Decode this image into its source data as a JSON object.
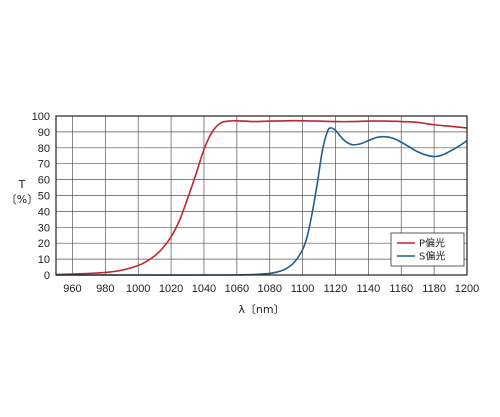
{
  "chart_data": {
    "type": "line",
    "title": "",
    "xlabel": "λ〔nm〕",
    "ylabel_line1": "T",
    "ylabel_line2": "〔%〕",
    "xlim": [
      950,
      1200
    ],
    "ylim": [
      0,
      100
    ],
    "x_ticks": [
      960,
      980,
      1000,
      1020,
      1040,
      1060,
      1080,
      1100,
      1120,
      1140,
      1160,
      1180,
      1200
    ],
    "y_ticks": [
      0,
      10,
      20,
      30,
      40,
      50,
      60,
      70,
      80,
      90,
      100
    ],
    "grid": true,
    "legend_position": "bottom-right",
    "series": [
      {
        "name": "P偏光",
        "color": "#c0262d",
        "points": [
          [
            950,
            0.3
          ],
          [
            960,
            0.6
          ],
          [
            970,
            1.0
          ],
          [
            980,
            1.6
          ],
          [
            990,
            3.0
          ],
          [
            1000,
            6.0
          ],
          [
            1005,
            8.5
          ],
          [
            1010,
            12.0
          ],
          [
            1015,
            17.0
          ],
          [
            1020,
            24.0
          ],
          [
            1025,
            34.0
          ],
          [
            1030,
            48.0
          ],
          [
            1035,
            63.0
          ],
          [
            1040,
            79.0
          ],
          [
            1045,
            90.0
          ],
          [
            1050,
            95.5
          ],
          [
            1055,
            96.8
          ],
          [
            1060,
            97.0
          ],
          [
            1070,
            96.5
          ],
          [
            1080,
            96.8
          ],
          [
            1090,
            97.0
          ],
          [
            1100,
            97.0
          ],
          [
            1110,
            96.8
          ],
          [
            1120,
            96.5
          ],
          [
            1130,
            96.5
          ],
          [
            1140,
            96.8
          ],
          [
            1150,
            96.8
          ],
          [
            1160,
            96.5
          ],
          [
            1170,
            96.0
          ],
          [
            1180,
            94.5
          ],
          [
            1190,
            93.5
          ],
          [
            1200,
            92.5
          ]
        ]
      },
      {
        "name": "S偏光",
        "color": "#1f5f8f",
        "points": [
          [
            950,
            0.0
          ],
          [
            1000,
            0.0
          ],
          [
            1050,
            0.0
          ],
          [
            1070,
            0.3
          ],
          [
            1080,
            1.0
          ],
          [
            1085,
            2.0
          ],
          [
            1090,
            4.0
          ],
          [
            1095,
            8.0
          ],
          [
            1100,
            16.0
          ],
          [
            1103,
            25.0
          ],
          [
            1106,
            40.0
          ],
          [
            1109,
            58.0
          ],
          [
            1112,
            78.0
          ],
          [
            1115,
            90.0
          ],
          [
            1117,
            92.5
          ],
          [
            1120,
            91.0
          ],
          [
            1125,
            85.0
          ],
          [
            1130,
            82.0
          ],
          [
            1135,
            82.5
          ],
          [
            1140,
            84.5
          ],
          [
            1145,
            86.5
          ],
          [
            1150,
            87.0
          ],
          [
            1155,
            86.0
          ],
          [
            1160,
            83.5
          ],
          [
            1165,
            80.5
          ],
          [
            1170,
            77.5
          ],
          [
            1175,
            75.5
          ],
          [
            1180,
            74.5
          ],
          [
            1185,
            75.5
          ],
          [
            1190,
            78.0
          ],
          [
            1195,
            81.0
          ],
          [
            1200,
            84.5
          ]
        ]
      }
    ]
  }
}
